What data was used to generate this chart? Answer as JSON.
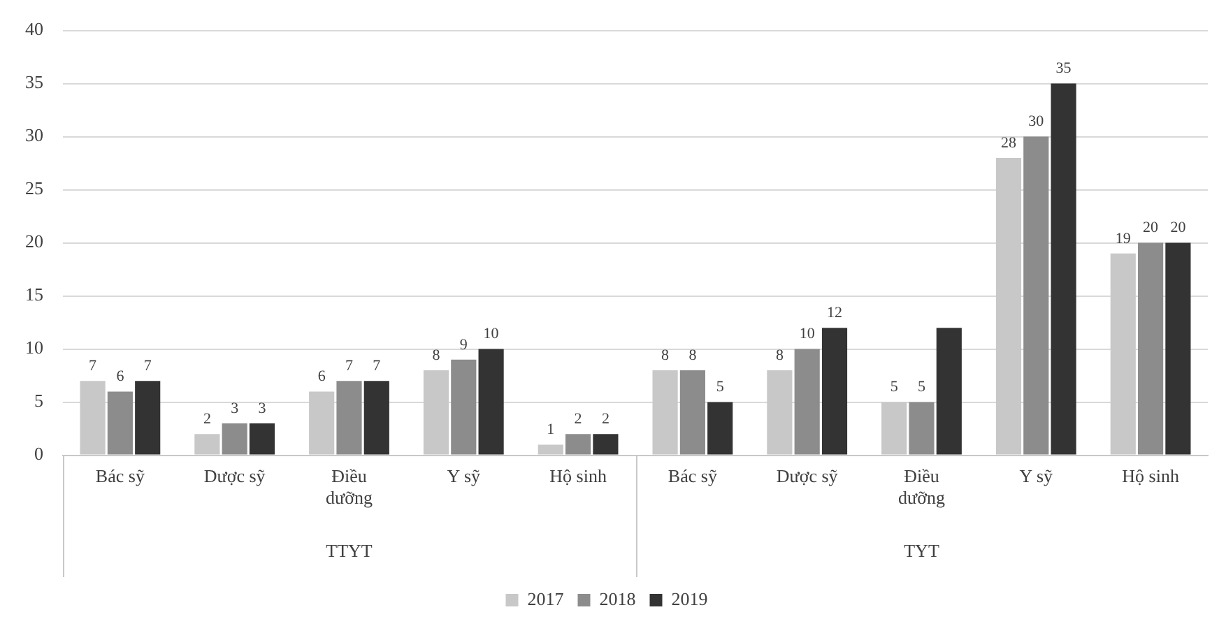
{
  "chart_data": {
    "type": "bar",
    "categories": [
      "Bác sỹ",
      "Dược sỹ",
      "Điều dưỡng",
      "Y sỹ",
      "Hộ sinh",
      "Bác sỹ",
      "Dược sỹ",
      "Điều dưỡng",
      "Y sỹ",
      "Hộ sinh"
    ],
    "series": [
      {
        "name": "2017",
        "color": "#c8c8c8",
        "values": [
          7,
          2,
          6,
          8,
          1,
          8,
          8,
          5,
          28,
          19
        ],
        "value_labels": [
          "7",
          "2",
          "6",
          "8",
          "1",
          "8",
          "8",
          "5",
          "28",
          "19"
        ]
      },
      {
        "name": "2018",
        "color": "#8c8c8c",
        "values": [
          6,
          3,
          7,
          9,
          2,
          8,
          10,
          5,
          30,
          20
        ],
        "value_labels": [
          "6",
          "3",
          "7",
          "9",
          "2",
          "8",
          "10",
          "5",
          "30",
          "20"
        ]
      },
      {
        "name": "2019",
        "color": "#333333",
        "values": [
          7,
          3,
          7,
          10,
          2,
          5,
          12,
          12,
          35,
          20
        ],
        "value_labels": [
          "7",
          "3",
          "7",
          "10",
          "2",
          "5",
          "12",
          null,
          "35",
          "20"
        ]
      }
    ],
    "ylim": [
      0,
      40
    ],
    "yticks": [
      0,
      5,
      10,
      15,
      20,
      25,
      30,
      35,
      40
    ],
    "grid": "y",
    "legend": "bottom",
    "annotations": [
      "TTYT",
      "TYT"
    ]
  }
}
